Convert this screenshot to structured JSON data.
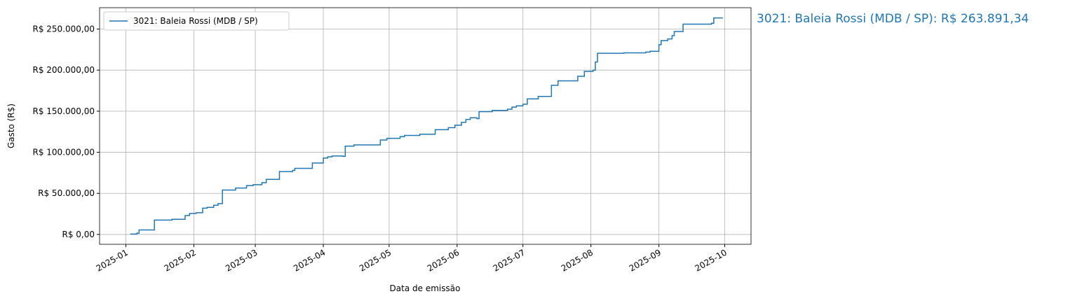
{
  "chart_data": {
    "type": "line",
    "step": "post",
    "x_label": "Data de emissão",
    "y_label": "Gasto (R$)",
    "annotation": "3021: Baleia Rossi (MDB / SP): R$ 263.891,34",
    "legend": "upper left",
    "grid": true,
    "x": [
      "2025-01-03",
      "2025-01-06",
      "2025-01-07",
      "2025-01-14",
      "2025-01-22",
      "2025-01-28",
      "2025-01-30",
      "2025-02-02",
      "2025-02-05",
      "2025-02-07",
      "2025-02-10",
      "2025-02-12",
      "2025-02-14",
      "2025-02-20",
      "2025-02-25",
      "2025-02-28",
      "2025-03-04",
      "2025-03-06",
      "2025-03-12",
      "2025-03-18",
      "2025-03-19",
      "2025-03-27",
      "2025-04-01",
      "2025-04-03",
      "2025-04-05",
      "2025-04-10",
      "2025-04-11",
      "2025-04-15",
      "2025-04-27",
      "2025-04-30",
      "2025-05-06",
      "2025-05-08",
      "2025-05-15",
      "2025-05-22",
      "2025-05-28",
      "2025-05-31",
      "2025-06-03",
      "2025-06-05",
      "2025-06-07",
      "2025-06-10",
      "2025-06-11",
      "2025-06-17",
      "2025-06-24",
      "2025-06-26",
      "2025-06-28",
      "2025-07-01",
      "2025-07-03",
      "2025-07-08",
      "2025-07-14",
      "2025-07-17",
      "2025-07-26",
      "2025-07-29",
      "2025-08-02",
      "2025-08-03",
      "2025-08-04",
      "2025-08-16",
      "2025-08-26",
      "2025-08-28",
      "2025-09-01",
      "2025-09-02",
      "2025-09-05",
      "2025-09-07",
      "2025-09-08",
      "2025-09-12",
      "2025-09-25",
      "2025-09-26",
      "2025-09-30"
    ],
    "series": [
      {
        "name": "3021: Baleia Rossi (MDB / SP)",
        "color": "#1f77b4",
        "values": [
          500,
          1500,
          5500,
          17500,
          18500,
          23000,
          25500,
          26500,
          32000,
          33000,
          35500,
          37500,
          54000,
          56500,
          59500,
          60500,
          63000,
          67000,
          76500,
          78000,
          80500,
          87000,
          93000,
          94500,
          95500,
          95000,
          107500,
          109000,
          115000,
          117000,
          119000,
          120500,
          122000,
          127500,
          130000,
          133000,
          136500,
          140000,
          142000,
          141000,
          149500,
          151000,
          152500,
          155000,
          156500,
          158500,
          165000,
          168000,
          181500,
          187000,
          192500,
          198500,
          200000,
          210000,
          220500,
          221000,
          222000,
          223000,
          231000,
          236000,
          238000,
          242000,
          247000,
          256000,
          257000,
          263500,
          263891.34
        ]
      }
    ],
    "xlim": [
      "2024-12-20",
      "2025-10-13"
    ],
    "xticks": [
      {
        "value": "2025-01-01",
        "label": "2025-01"
      },
      {
        "value": "2025-02-01",
        "label": "2025-02"
      },
      {
        "value": "2025-03-01",
        "label": "2025-03"
      },
      {
        "value": "2025-04-01",
        "label": "2025-04"
      },
      {
        "value": "2025-05-01",
        "label": "2025-05"
      },
      {
        "value": "2025-06-01",
        "label": "2025-06"
      },
      {
        "value": "2025-07-01",
        "label": "2025-07"
      },
      {
        "value": "2025-08-01",
        "label": "2025-08"
      },
      {
        "value": "2025-09-01",
        "label": "2025-09"
      },
      {
        "value": "2025-10-01",
        "label": "2025-10"
      }
    ],
    "ylim": [
      -12000,
      276000
    ],
    "yticks": [
      {
        "value": 0,
        "label": "R$ 0,00"
      },
      {
        "value": 50000,
        "label": "R$ 50.000,00"
      },
      {
        "value": 100000,
        "label": "R$ 100.000,00"
      },
      {
        "value": 150000,
        "label": "R$ 150.000,00"
      },
      {
        "value": 200000,
        "label": "R$ 200.000,00"
      },
      {
        "value": 250000,
        "label": "R$ 250.000,00"
      }
    ]
  }
}
